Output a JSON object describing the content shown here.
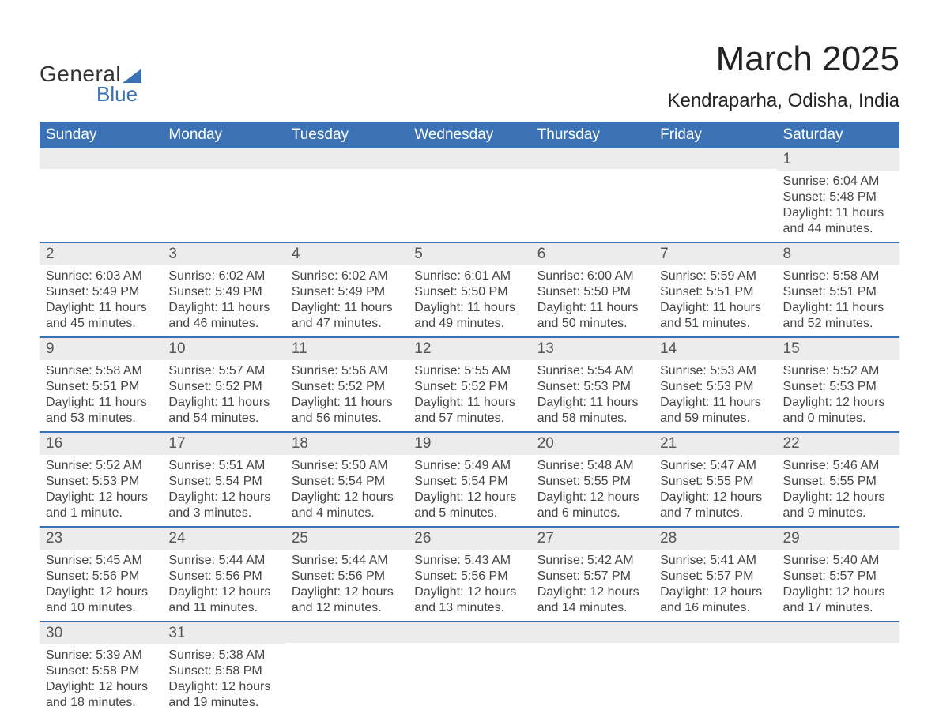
{
  "brand": {
    "word1": "General",
    "word2": "Blue",
    "accent_color": "#3a72b5"
  },
  "title": "March 2025",
  "subtitle": "Kendraparha, Odisha, India",
  "colors": {
    "header_bg": "#3a72b5",
    "header_text": "#ffffff",
    "daynum_bg": "#ececec",
    "row_divider": "#3a72b5",
    "body_text": "#444444",
    "page_bg": "#ffffff"
  },
  "fontsizes": {
    "title": 44,
    "subtitle": 24,
    "header": 19,
    "daynum": 19,
    "body": 16
  },
  "day_headers": [
    "Sunday",
    "Monday",
    "Tuesday",
    "Wednesday",
    "Thursday",
    "Friday",
    "Saturday"
  ],
  "weeks": [
    [
      null,
      null,
      null,
      null,
      null,
      null,
      {
        "n": "1",
        "sunrise": "6:04 AM",
        "sunset": "5:48 PM",
        "daylight": "11 hours and 44 minutes."
      }
    ],
    [
      {
        "n": "2",
        "sunrise": "6:03 AM",
        "sunset": "5:49 PM",
        "daylight": "11 hours and 45 minutes."
      },
      {
        "n": "3",
        "sunrise": "6:02 AM",
        "sunset": "5:49 PM",
        "daylight": "11 hours and 46 minutes."
      },
      {
        "n": "4",
        "sunrise": "6:02 AM",
        "sunset": "5:49 PM",
        "daylight": "11 hours and 47 minutes."
      },
      {
        "n": "5",
        "sunrise": "6:01 AM",
        "sunset": "5:50 PM",
        "daylight": "11 hours and 49 minutes."
      },
      {
        "n": "6",
        "sunrise": "6:00 AM",
        "sunset": "5:50 PM",
        "daylight": "11 hours and 50 minutes."
      },
      {
        "n": "7",
        "sunrise": "5:59 AM",
        "sunset": "5:51 PM",
        "daylight": "11 hours and 51 minutes."
      },
      {
        "n": "8",
        "sunrise": "5:58 AM",
        "sunset": "5:51 PM",
        "daylight": "11 hours and 52 minutes."
      }
    ],
    [
      {
        "n": "9",
        "sunrise": "5:58 AM",
        "sunset": "5:51 PM",
        "daylight": "11 hours and 53 minutes."
      },
      {
        "n": "10",
        "sunrise": "5:57 AM",
        "sunset": "5:52 PM",
        "daylight": "11 hours and 54 minutes."
      },
      {
        "n": "11",
        "sunrise": "5:56 AM",
        "sunset": "5:52 PM",
        "daylight": "11 hours and 56 minutes."
      },
      {
        "n": "12",
        "sunrise": "5:55 AM",
        "sunset": "5:52 PM",
        "daylight": "11 hours and 57 minutes."
      },
      {
        "n": "13",
        "sunrise": "5:54 AM",
        "sunset": "5:53 PM",
        "daylight": "11 hours and 58 minutes."
      },
      {
        "n": "14",
        "sunrise": "5:53 AM",
        "sunset": "5:53 PM",
        "daylight": "11 hours and 59 minutes."
      },
      {
        "n": "15",
        "sunrise": "5:52 AM",
        "sunset": "5:53 PM",
        "daylight": "12 hours and 0 minutes."
      }
    ],
    [
      {
        "n": "16",
        "sunrise": "5:52 AM",
        "sunset": "5:53 PM",
        "daylight": "12 hours and 1 minute."
      },
      {
        "n": "17",
        "sunrise": "5:51 AM",
        "sunset": "5:54 PM",
        "daylight": "12 hours and 3 minutes."
      },
      {
        "n": "18",
        "sunrise": "5:50 AM",
        "sunset": "5:54 PM",
        "daylight": "12 hours and 4 minutes."
      },
      {
        "n": "19",
        "sunrise": "5:49 AM",
        "sunset": "5:54 PM",
        "daylight": "12 hours and 5 minutes."
      },
      {
        "n": "20",
        "sunrise": "5:48 AM",
        "sunset": "5:55 PM",
        "daylight": "12 hours and 6 minutes."
      },
      {
        "n": "21",
        "sunrise": "5:47 AM",
        "sunset": "5:55 PM",
        "daylight": "12 hours and 7 minutes."
      },
      {
        "n": "22",
        "sunrise": "5:46 AM",
        "sunset": "5:55 PM",
        "daylight": "12 hours and 9 minutes."
      }
    ],
    [
      {
        "n": "23",
        "sunrise": "5:45 AM",
        "sunset": "5:56 PM",
        "daylight": "12 hours and 10 minutes."
      },
      {
        "n": "24",
        "sunrise": "5:44 AM",
        "sunset": "5:56 PM",
        "daylight": "12 hours and 11 minutes."
      },
      {
        "n": "25",
        "sunrise": "5:44 AM",
        "sunset": "5:56 PM",
        "daylight": "12 hours and 12 minutes."
      },
      {
        "n": "26",
        "sunrise": "5:43 AM",
        "sunset": "5:56 PM",
        "daylight": "12 hours and 13 minutes."
      },
      {
        "n": "27",
        "sunrise": "5:42 AM",
        "sunset": "5:57 PM",
        "daylight": "12 hours and 14 minutes."
      },
      {
        "n": "28",
        "sunrise": "5:41 AM",
        "sunset": "5:57 PM",
        "daylight": "12 hours and 16 minutes."
      },
      {
        "n": "29",
        "sunrise": "5:40 AM",
        "sunset": "5:57 PM",
        "daylight": "12 hours and 17 minutes."
      }
    ],
    [
      {
        "n": "30",
        "sunrise": "5:39 AM",
        "sunset": "5:58 PM",
        "daylight": "12 hours and 18 minutes."
      },
      {
        "n": "31",
        "sunrise": "5:38 AM",
        "sunset": "5:58 PM",
        "daylight": "12 hours and 19 minutes."
      },
      null,
      null,
      null,
      null,
      null
    ]
  ],
  "labels": {
    "sunrise": "Sunrise:",
    "sunset": "Sunset:",
    "daylight": "Daylight:"
  }
}
